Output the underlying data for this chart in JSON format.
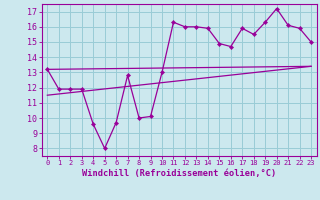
{
  "line1_x": [
    0,
    1,
    2,
    3,
    4,
    5,
    6,
    7,
    8,
    9,
    10,
    11,
    12,
    13,
    14,
    15,
    16,
    17,
    18,
    19,
    20,
    21,
    22,
    23
  ],
  "line1_y": [
    13.2,
    11.9,
    11.9,
    11.9,
    9.6,
    8.0,
    9.7,
    12.8,
    10.0,
    10.1,
    13.0,
    16.3,
    16.0,
    16.0,
    15.9,
    14.9,
    14.7,
    15.9,
    15.5,
    16.3,
    17.2,
    16.1,
    15.9,
    15.0
  ],
  "line2_x": [
    0,
    23
  ],
  "line2_y": [
    11.5,
    13.4
  ],
  "line3_x": [
    0,
    23
  ],
  "line3_y": [
    13.2,
    13.4
  ],
  "color": "#990099",
  "bg_color": "#cce8ee",
  "grid_color": "#99ccd6",
  "xlabel": "Windchill (Refroidissement éolien,°C)",
  "xlim": [
    -0.5,
    23.5
  ],
  "ylim": [
    7.5,
    17.5
  ],
  "yticks": [
    8,
    9,
    10,
    11,
    12,
    13,
    14,
    15,
    16,
    17
  ],
  "xticks": [
    0,
    1,
    2,
    3,
    4,
    5,
    6,
    7,
    8,
    9,
    10,
    11,
    12,
    13,
    14,
    15,
    16,
    17,
    18,
    19,
    20,
    21,
    22,
    23
  ]
}
